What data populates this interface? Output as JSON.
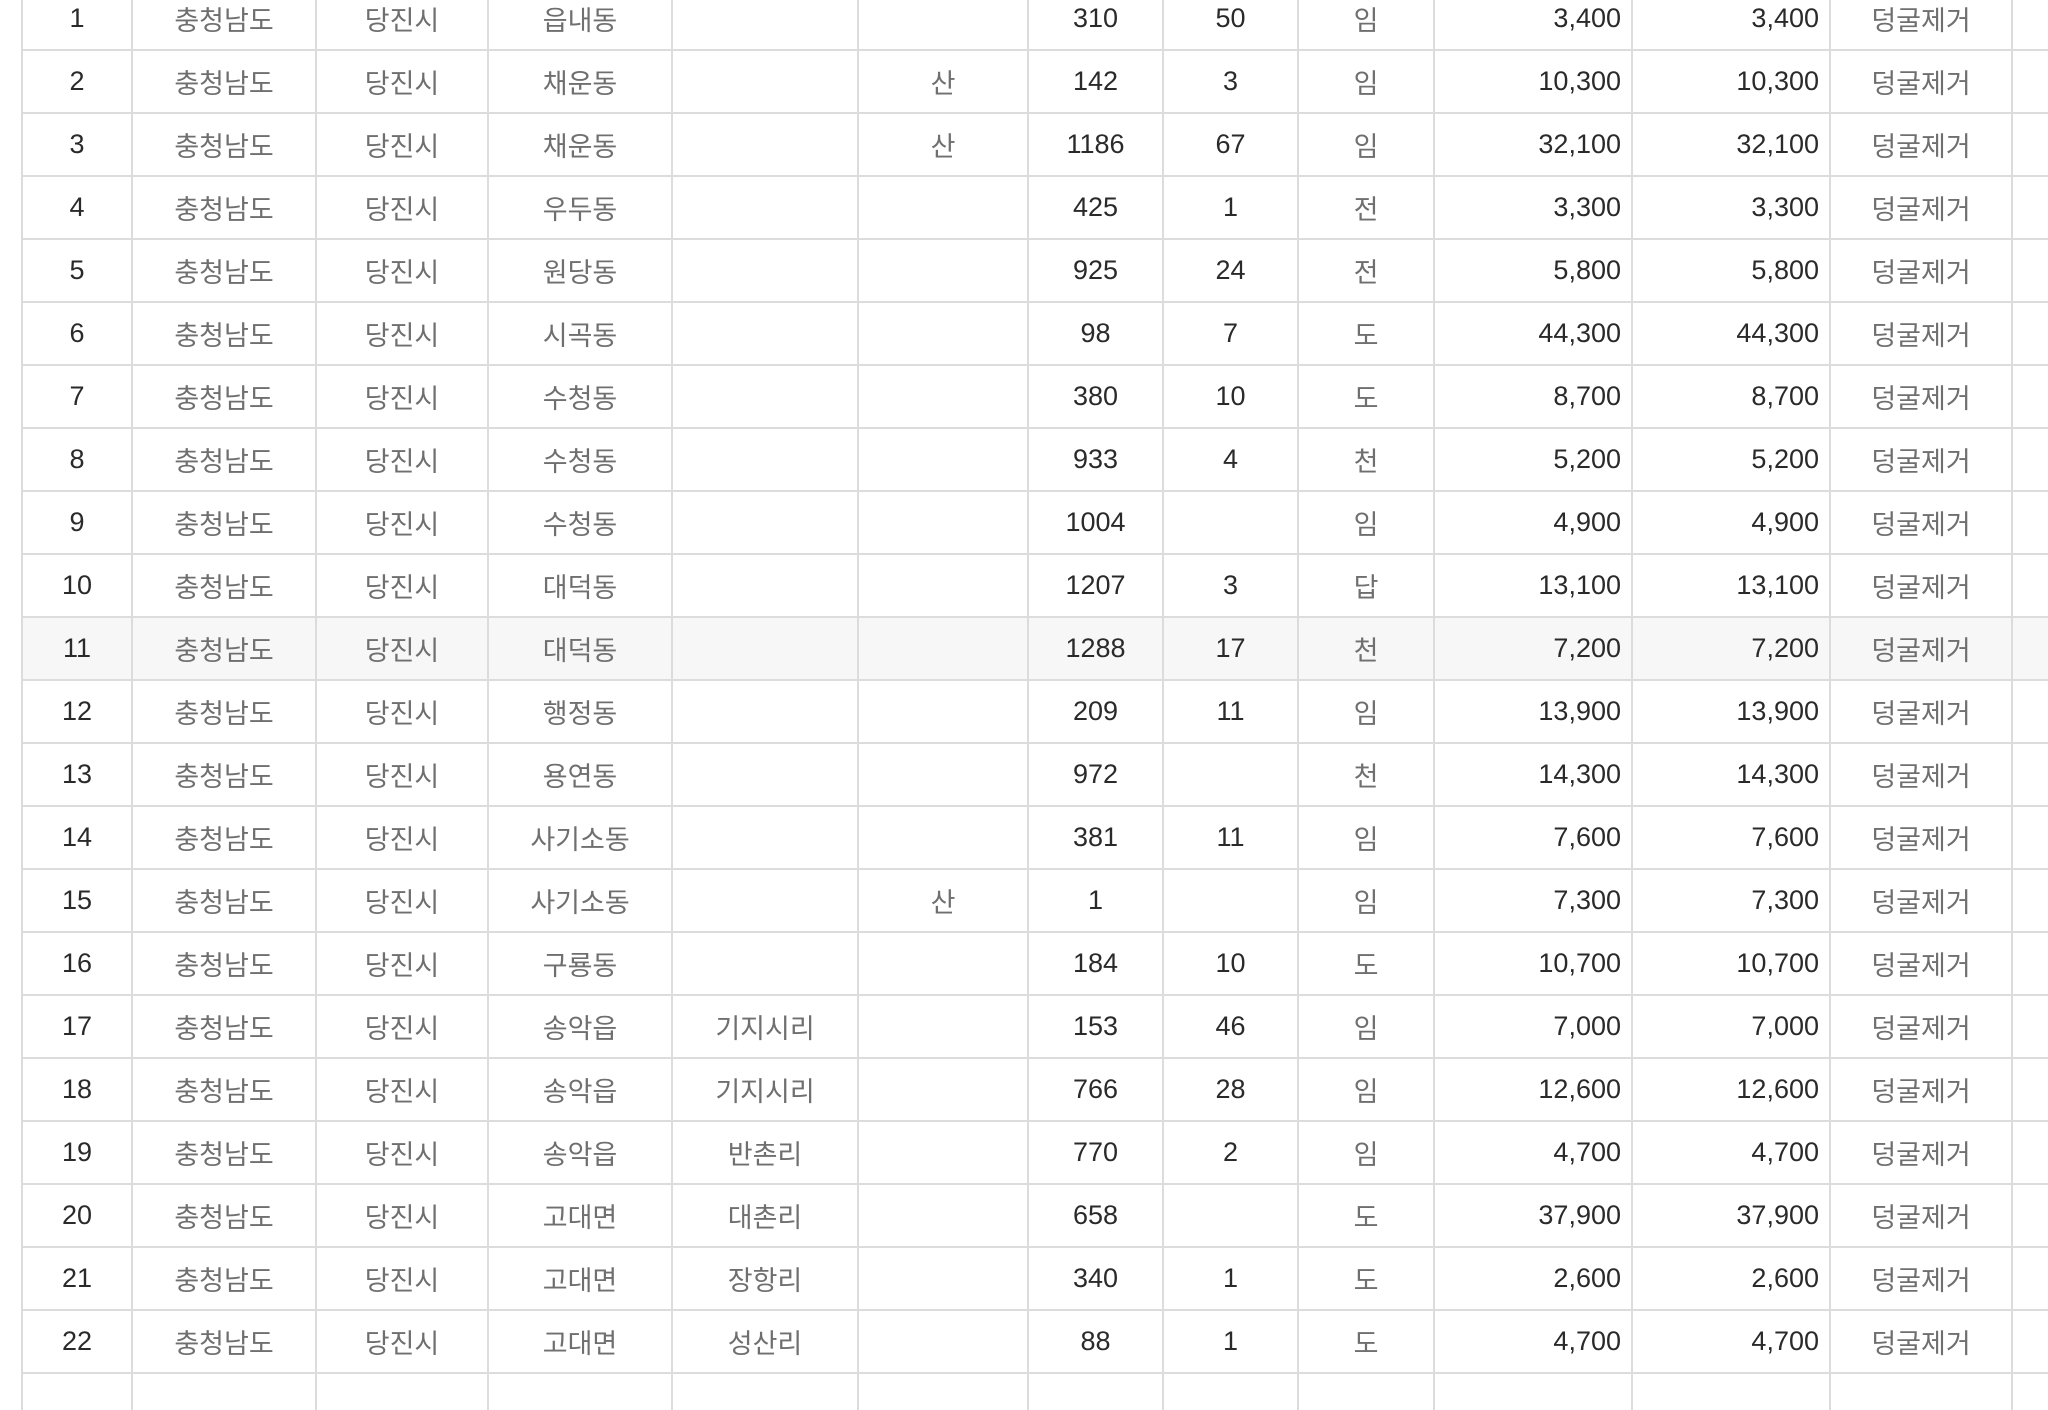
{
  "table": {
    "rows": [
      {
        "no": "1",
        "sido": "충청남도",
        "sigungu": "당진시",
        "dong": "읍내동",
        "ri": "",
        "san": "",
        "bonbun": "310",
        "bubun": "50",
        "jimok": "임",
        "area1": "3,400",
        "area2": "3,400",
        "work": "덩굴제거"
      },
      {
        "no": "2",
        "sido": "충청남도",
        "sigungu": "당진시",
        "dong": "채운동",
        "ri": "",
        "san": "산",
        "bonbun": "142",
        "bubun": "3",
        "jimok": "임",
        "area1": "10,300",
        "area2": "10,300",
        "work": "덩굴제거"
      },
      {
        "no": "3",
        "sido": "충청남도",
        "sigungu": "당진시",
        "dong": "채운동",
        "ri": "",
        "san": "산",
        "bonbun": "1186",
        "bubun": "67",
        "jimok": "임",
        "area1": "32,100",
        "area2": "32,100",
        "work": "덩굴제거"
      },
      {
        "no": "4",
        "sido": "충청남도",
        "sigungu": "당진시",
        "dong": "우두동",
        "ri": "",
        "san": "",
        "bonbun": "425",
        "bubun": "1",
        "jimok": "전",
        "area1": "3,300",
        "area2": "3,300",
        "work": "덩굴제거"
      },
      {
        "no": "5",
        "sido": "충청남도",
        "sigungu": "당진시",
        "dong": "원당동",
        "ri": "",
        "san": "",
        "bonbun": "925",
        "bubun": "24",
        "jimok": "전",
        "area1": "5,800",
        "area2": "5,800",
        "work": "덩굴제거"
      },
      {
        "no": "6",
        "sido": "충청남도",
        "sigungu": "당진시",
        "dong": "시곡동",
        "ri": "",
        "san": "",
        "bonbun": "98",
        "bubun": "7",
        "jimok": "도",
        "area1": "44,300",
        "area2": "44,300",
        "work": "덩굴제거"
      },
      {
        "no": "7",
        "sido": "충청남도",
        "sigungu": "당진시",
        "dong": "수청동",
        "ri": "",
        "san": "",
        "bonbun": "380",
        "bubun": "10",
        "jimok": "도",
        "area1": "8,700",
        "area2": "8,700",
        "work": "덩굴제거"
      },
      {
        "no": "8",
        "sido": "충청남도",
        "sigungu": "당진시",
        "dong": "수청동",
        "ri": "",
        "san": "",
        "bonbun": "933",
        "bubun": "4",
        "jimok": "천",
        "area1": "5,200",
        "area2": "5,200",
        "work": "덩굴제거"
      },
      {
        "no": "9",
        "sido": "충청남도",
        "sigungu": "당진시",
        "dong": "수청동",
        "ri": "",
        "san": "",
        "bonbun": "1004",
        "bubun": "",
        "jimok": "임",
        "area1": "4,900",
        "area2": "4,900",
        "work": "덩굴제거"
      },
      {
        "no": "10",
        "sido": "충청남도",
        "sigungu": "당진시",
        "dong": "대덕동",
        "ri": "",
        "san": "",
        "bonbun": "1207",
        "bubun": "3",
        "jimok": "답",
        "area1": "13,100",
        "area2": "13,100",
        "work": "덩굴제거"
      },
      {
        "no": "11",
        "sido": "충청남도",
        "sigungu": "당진시",
        "dong": "대덕동",
        "ri": "",
        "san": "",
        "bonbun": "1288",
        "bubun": "17",
        "jimok": "천",
        "area1": "7,200",
        "area2": "7,200",
        "work": "덩굴제거"
      },
      {
        "no": "12",
        "sido": "충청남도",
        "sigungu": "당진시",
        "dong": "행정동",
        "ri": "",
        "san": "",
        "bonbun": "209",
        "bubun": "11",
        "jimok": "임",
        "area1": "13,900",
        "area2": "13,900",
        "work": "덩굴제거"
      },
      {
        "no": "13",
        "sido": "충청남도",
        "sigungu": "당진시",
        "dong": "용연동",
        "ri": "",
        "san": "",
        "bonbun": "972",
        "bubun": "",
        "jimok": "천",
        "area1": "14,300",
        "area2": "14,300",
        "work": "덩굴제거"
      },
      {
        "no": "14",
        "sido": "충청남도",
        "sigungu": "당진시",
        "dong": "사기소동",
        "ri": "",
        "san": "",
        "bonbun": "381",
        "bubun": "11",
        "jimok": "임",
        "area1": "7,600",
        "area2": "7,600",
        "work": "덩굴제거"
      },
      {
        "no": "15",
        "sido": "충청남도",
        "sigungu": "당진시",
        "dong": "사기소동",
        "ri": "",
        "san": "산",
        "bonbun": "1",
        "bubun": "",
        "jimok": "임",
        "area1": "7,300",
        "area2": "7,300",
        "work": "덩굴제거"
      },
      {
        "no": "16",
        "sido": "충청남도",
        "sigungu": "당진시",
        "dong": "구룡동",
        "ri": "",
        "san": "",
        "bonbun": "184",
        "bubun": "10",
        "jimok": "도",
        "area1": "10,700",
        "area2": "10,700",
        "work": "덩굴제거"
      },
      {
        "no": "17",
        "sido": "충청남도",
        "sigungu": "당진시",
        "dong": "송악읍",
        "ri": "기지시리",
        "san": "",
        "bonbun": "153",
        "bubun": "46",
        "jimok": "임",
        "area1": "7,000",
        "area2": "7,000",
        "work": "덩굴제거"
      },
      {
        "no": "18",
        "sido": "충청남도",
        "sigungu": "당진시",
        "dong": "송악읍",
        "ri": "기지시리",
        "san": "",
        "bonbun": "766",
        "bubun": "28",
        "jimok": "임",
        "area1": "12,600",
        "area2": "12,600",
        "work": "덩굴제거"
      },
      {
        "no": "19",
        "sido": "충청남도",
        "sigungu": "당진시",
        "dong": "송악읍",
        "ri": "반촌리",
        "san": "",
        "bonbun": "770",
        "bubun": "2",
        "jimok": "임",
        "area1": "4,700",
        "area2": "4,700",
        "work": "덩굴제거"
      },
      {
        "no": "20",
        "sido": "충청남도",
        "sigungu": "당진시",
        "dong": "고대면",
        "ri": "대촌리",
        "san": "",
        "bonbun": "658",
        "bubun": "",
        "jimok": "도",
        "area1": "37,900",
        "area2": "37,900",
        "work": "덩굴제거"
      },
      {
        "no": "21",
        "sido": "충청남도",
        "sigungu": "당진시",
        "dong": "고대면",
        "ri": "장항리",
        "san": "",
        "bonbun": "340",
        "bubun": "1",
        "jimok": "도",
        "area1": "2,600",
        "area2": "2,600",
        "work": "덩굴제거"
      },
      {
        "no": "22",
        "sido": "충청남도",
        "sigungu": "당진시",
        "dong": "고대면",
        "ri": "성산리",
        "san": "",
        "bonbun": "88",
        "bubun": "1",
        "jimok": "도",
        "area1": "4,700",
        "area2": "4,700",
        "work": "덩굴제거"
      }
    ]
  }
}
